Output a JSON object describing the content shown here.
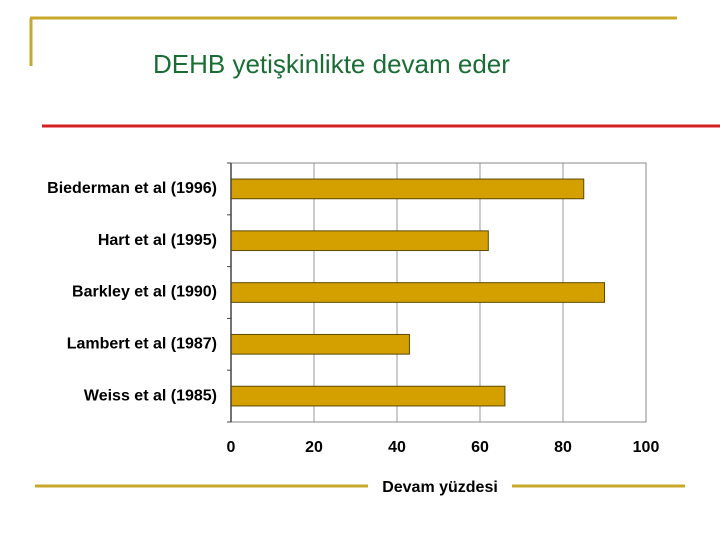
{
  "chart_data": {
    "type": "bar",
    "orientation": "horizontal",
    "title": "DEHB yetişkinlikte devam eder",
    "x_label": "Devam yüzdesi",
    "categories": [
      "Biederman et al (1996)",
      "Hart et al (1995)",
      "Barkley et al (1990)",
      "Lambert et al (1987)",
      "Weiss et al (1985)"
    ],
    "values": [
      85,
      62,
      90,
      43,
      66
    ],
    "color": "#d4a000",
    "xlim": [
      0,
      100
    ],
    "xticks": [
      0,
      20,
      40,
      60,
      80,
      100
    ],
    "grid": true
  }
}
